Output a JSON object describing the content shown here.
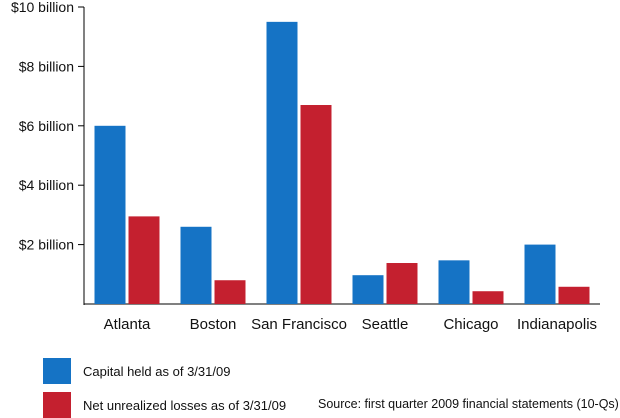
{
  "chart_data": {
    "type": "bar",
    "categories": [
      "Atlanta",
      "Boston",
      "San Francisco",
      "Seattle",
      "Chicago",
      "Indianapolis"
    ],
    "series": [
      {
        "name": "Capital held as of 3/31/09",
        "color": "#1573c5",
        "values": [
          6.0,
          2.6,
          9.5,
          0.97,
          1.47,
          2.0
        ]
      },
      {
        "name": "Net unrealized losses as of 3/31/09",
        "color": "#c4202f",
        "values": [
          2.95,
          0.8,
          6.7,
          1.38,
          0.43,
          0.58
        ]
      }
    ],
    "ylim": [
      0,
      10
    ],
    "yticks": [
      2,
      4,
      6,
      8,
      10
    ],
    "ytick_labels": [
      "$2 billion",
      "$4 billion",
      "$6 billion",
      "$8 billion",
      "$10 billion"
    ],
    "grid": false,
    "legend_position": "bottom-left"
  },
  "source_note": "Source:  first quarter 2009 financial statements (10-Qs)"
}
